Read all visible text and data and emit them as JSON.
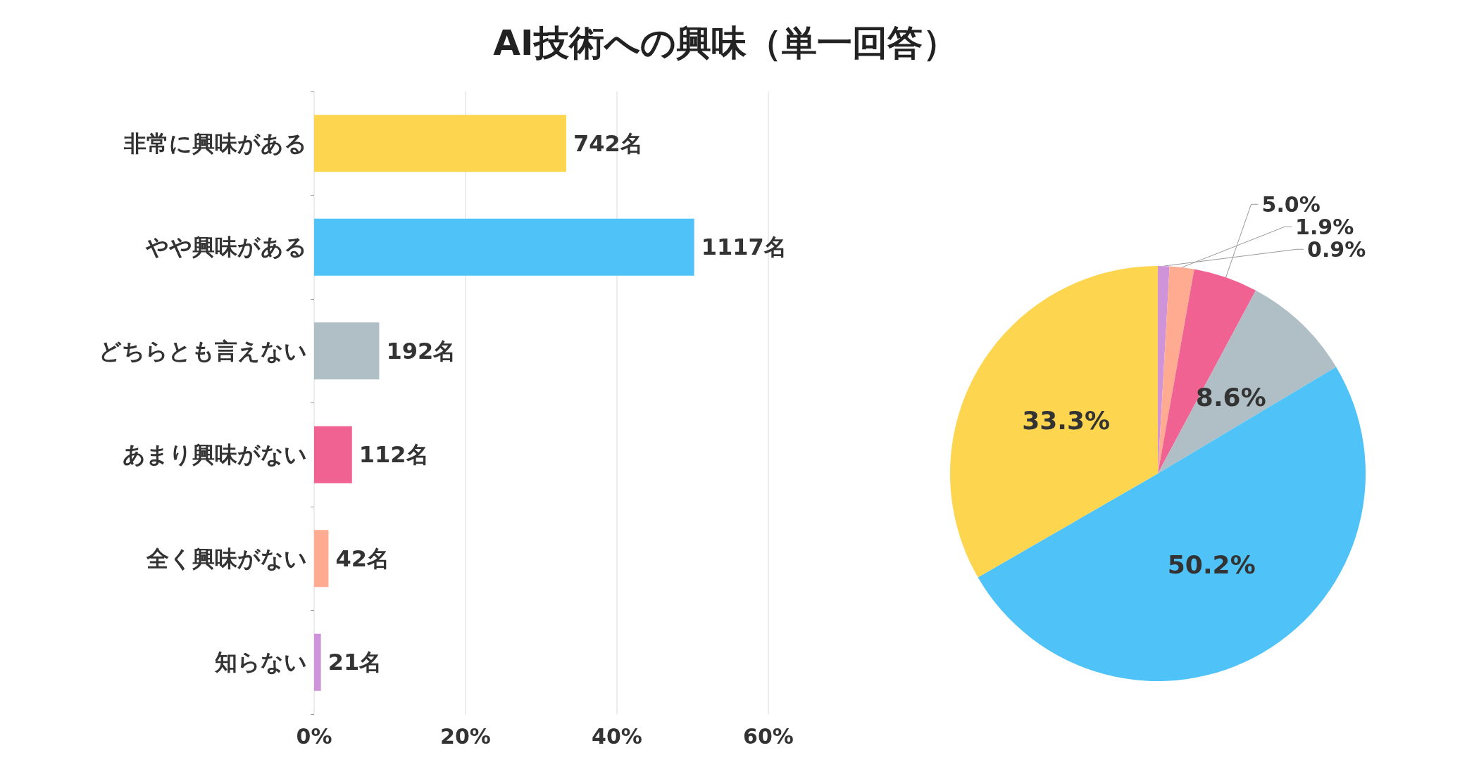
{
  "chart_data": [
    {
      "type": "bar",
      "orientation": "horizontal",
      "title": "AI技術への興味（単一回答）",
      "categories": [
        "非常に興味がある",
        "やや興味がある",
        "どちらとも言えない",
        "あまり興味がない",
        "全く興味がない",
        "知らない"
      ],
      "values": [
        33.3,
        50.2,
        8.6,
        5.0,
        1.9,
        0.9
      ],
      "colors": [
        "#fdd54f",
        "#4fc3f7",
        "#b0bec5",
        "#f06292",
        "#ffab91",
        "#ce93d8"
      ],
      "annotations": [
        {
          "text": "742名",
          "x": 33.3,
          "y": "非常に興味がある"
        },
        {
          "text": "1117名",
          "x": 50.2,
          "y": "やや興味がある"
        },
        {
          "text": "192名",
          "x": 8.6,
          "y": "どちらとも言えない"
        },
        {
          "text": "112名",
          "x": 5.0,
          "y": "あまり興味がない"
        },
        {
          "text": "42名",
          "x": 1.9,
          "y": "全く興味がない"
        },
        {
          "text": "21名",
          "x": 0.9,
          "y": "知らない"
        }
      ],
      "xlim": [
        0,
        60
      ],
      "xticks": [
        {
          "value": 0,
          "label": "0%"
        },
        {
          "value": 20,
          "label": "20%"
        },
        {
          "value": 40,
          "label": "40%"
        },
        {
          "value": 60,
          "label": "60%"
        }
      ],
      "grid": "x",
      "legend": false
    },
    {
      "type": "pie",
      "categories": [
        null,
        null,
        null,
        null,
        null,
        null
      ],
      "values": [
        0.9,
        1.9,
        5.0,
        8.6,
        50.2,
        33.3
      ],
      "colors": [
        "#ce93d8",
        "#ffab91",
        "#f06292",
        "#b0bec5",
        "#4fc3f7",
        "#fdd54f"
      ],
      "value_labels": [
        "0.9%",
        "1.9%",
        "5.0%",
        "8.6%",
        "50.2%",
        "33.3%"
      ],
      "legend": false
    }
  ]
}
